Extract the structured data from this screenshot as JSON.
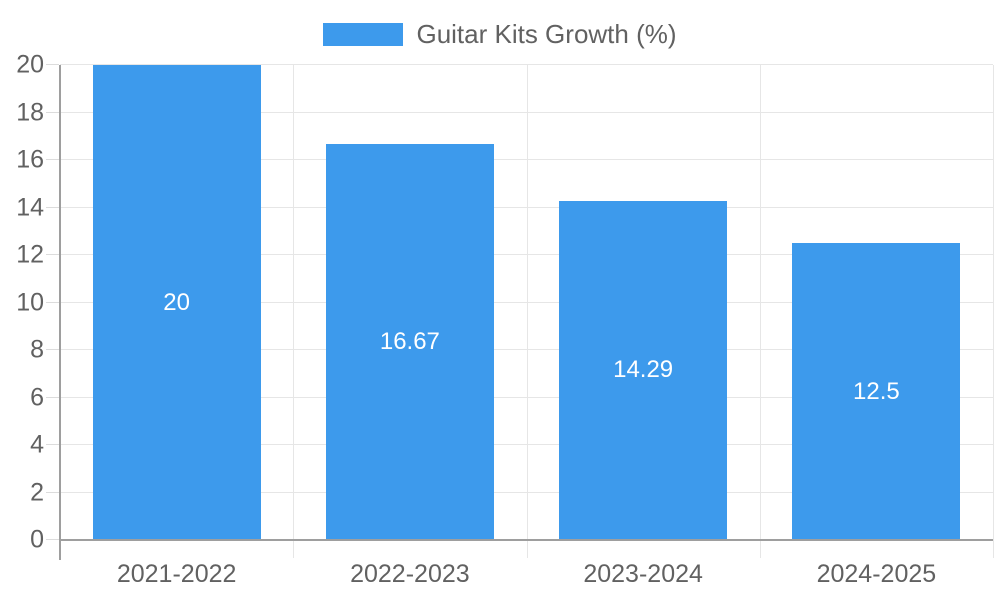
{
  "legend": {
    "label": "Guitar Kits Growth (%)"
  },
  "chart_data": {
    "type": "bar",
    "title": "Guitar Kits Growth (%)",
    "categories": [
      "2021-2022",
      "2022-2023",
      "2023-2024",
      "2024-2025"
    ],
    "values": [
      20,
      16.67,
      14.29,
      12.5
    ],
    "value_labels": [
      "20",
      "16.67",
      "14.29",
      "12.5"
    ],
    "xlabel": "",
    "ylabel": "",
    "ylim": [
      0,
      20
    ],
    "yticks": [
      0,
      2,
      4,
      6,
      8,
      10,
      12,
      14,
      16,
      18,
      20
    ],
    "grid": true,
    "legend_position": "top-center",
    "colors": {
      "bar": "#3d9aec",
      "bar_label": "#ffffff",
      "gridline": "#e6e6e6",
      "axis_line": "#9e9e9e",
      "tick_mark": "#dcdcdc",
      "tick_label": "#616161"
    }
  }
}
